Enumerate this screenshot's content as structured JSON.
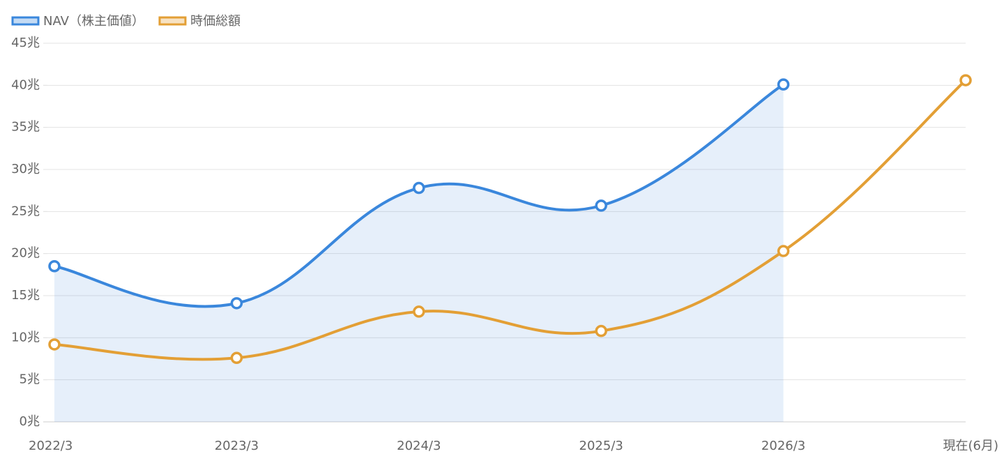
{
  "chart_data": {
    "type": "line",
    "categories": [
      "2022/3",
      "2023/3",
      "2024/3",
      "2025/3",
      "2026/3",
      "現在(6月)"
    ],
    "series": [
      {
        "name": "NAV（株主価値）",
        "color": "#3a87dc",
        "fill": true,
        "values": [
          18.5,
          14.1,
          27.8,
          25.7,
          40.1,
          null
        ]
      },
      {
        "name": "時価総額",
        "color": "#e39f35",
        "fill": false,
        "values": [
          9.2,
          7.6,
          13.1,
          10.8,
          20.3,
          40.6
        ]
      }
    ],
    "ylim": [
      0,
      45
    ],
    "yticks": [
      {
        "value": 0,
        "label": "0兆"
      },
      {
        "value": 5,
        "label": "5兆"
      },
      {
        "value": 10,
        "label": "10兆"
      },
      {
        "value": 15,
        "label": "15兆"
      },
      {
        "value": 20,
        "label": "20兆"
      },
      {
        "value": 25,
        "label": "25兆"
      },
      {
        "value": 30,
        "label": "30兆"
      },
      {
        "value": 35,
        "label": "35兆"
      },
      {
        "value": 40,
        "label": "40兆"
      },
      {
        "value": 45,
        "label": "45兆"
      }
    ],
    "grid": true,
    "legend": "top-left"
  }
}
